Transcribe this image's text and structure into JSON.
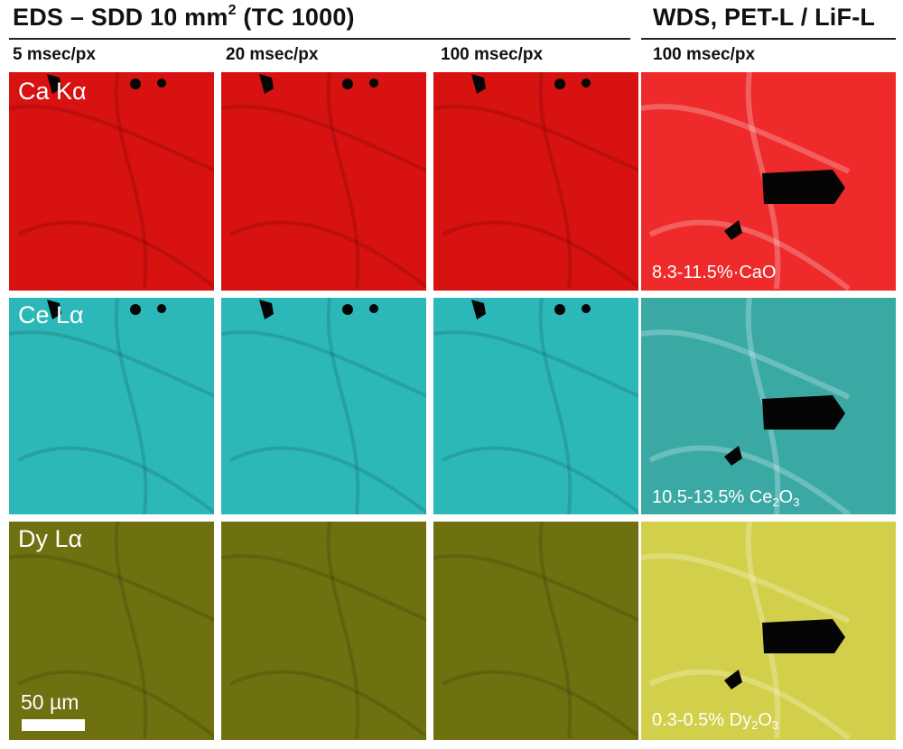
{
  "header": {
    "eds_title": "EDS – SDD 10 mm",
    "eds_title_sup": "2",
    "eds_title_suffix": " (TC 1000)",
    "wds_title": "WDS, PET-L / LiF-L"
  },
  "columns": [
    {
      "label": "5 msec/px"
    },
    {
      "label": "20 msec/px"
    },
    {
      "label": "100 msec/px"
    },
    {
      "label": "100 msec/px"
    }
  ],
  "rows": [
    {
      "label": "Ca Kα",
      "color": "#d81111",
      "wds_color": "#ee2a2a"
    },
    {
      "label": "Ce Lα",
      "color": "#2cb8b8",
      "wds_color": "#3aa9a4"
    },
    {
      "label": "Dy Lα",
      "color": "#6f7010",
      "wds_color": "#d2d04a"
    }
  ],
  "wds_concentrations": [
    {
      "range": "8.3-11.5%",
      "separator": "·",
      "oxide": "CaO",
      "sub": "",
      "tail": ""
    },
    {
      "range": "10.5-13.5%",
      "separator": " ",
      "oxide": "Ce",
      "sub": "2",
      "tail": "O",
      "sub2": "3"
    },
    {
      "range": "0.3-0.5%",
      "separator": " ",
      "oxide": "Dy",
      "sub": "2",
      "tail": "O",
      "sub2": "3"
    }
  ],
  "scale_bar": {
    "label": "50 µm"
  }
}
